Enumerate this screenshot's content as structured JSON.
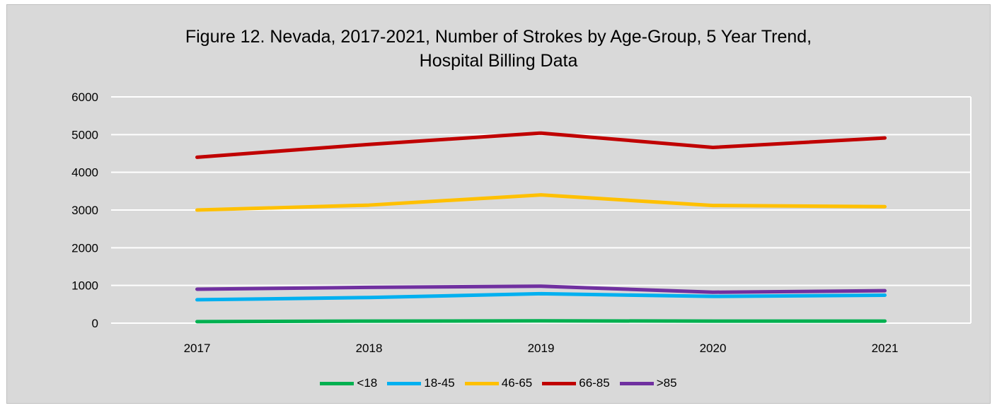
{
  "chart_data": {
    "type": "line",
    "title_line1": "Figure 12. Nevada, 2017-2021, Number of Strokes by Age-Group, 5 Year Trend,",
    "title_line2": "Hospital Billing Data",
    "categories": [
      "2017",
      "2018",
      "2019",
      "2020",
      "2021"
    ],
    "y_ticks": [
      "0",
      "1000",
      "2000",
      "3000",
      "4000",
      "5000",
      "6000"
    ],
    "ylim": [
      0,
      6000
    ],
    "grid": true,
    "legend_position": "bottom",
    "series": [
      {
        "name": "<18",
        "color": "#00b050",
        "values": [
          40,
          55,
          60,
          55,
          55
        ]
      },
      {
        "name": "18-45",
        "color": "#00b0f0",
        "values": [
          620,
          680,
          780,
          710,
          740
        ]
      },
      {
        "name": "46-65",
        "color": "#ffc000",
        "values": [
          3000,
          3130,
          3400,
          3120,
          3090
        ]
      },
      {
        "name": "66-85",
        "color": "#c00000",
        "values": [
          4400,
          4740,
          5040,
          4660,
          4910
        ]
      },
      {
        "name": ">85",
        "color": "#7030a0",
        "values": [
          900,
          950,
          980,
          820,
          860
        ]
      }
    ]
  }
}
